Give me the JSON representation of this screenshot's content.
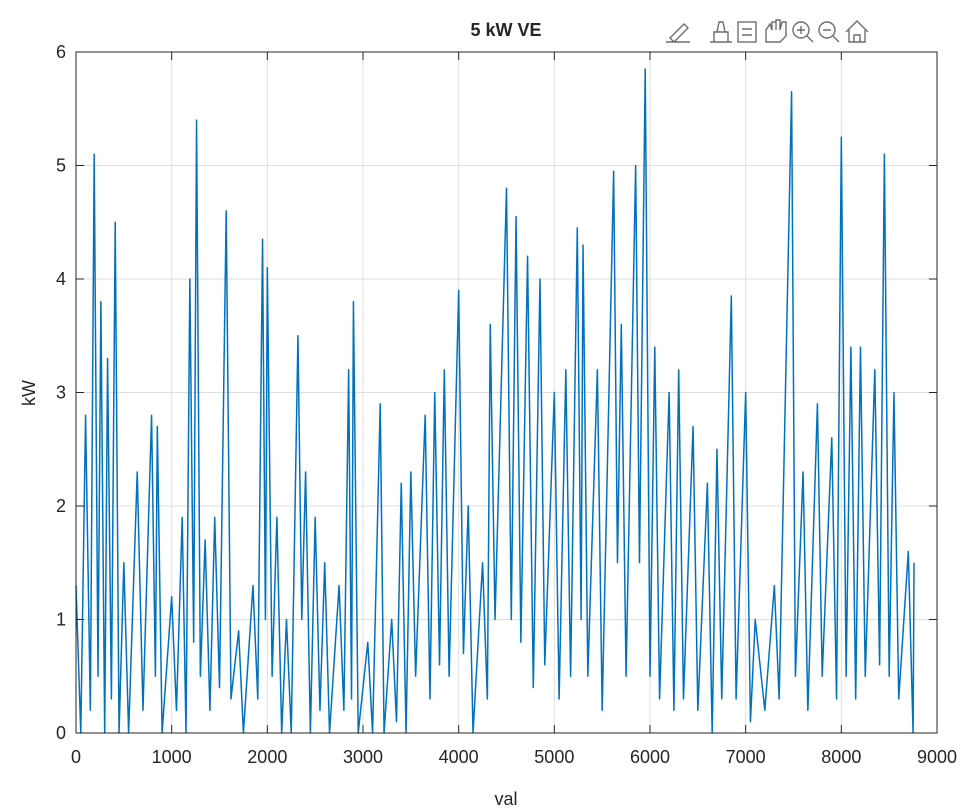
{
  "chart_data": {
    "type": "line",
    "title": "5 kW VE",
    "xlabel": "val",
    "ylabel": "kW",
    "color": "#0072bd",
    "grid": true,
    "xlim": [
      0,
      9000
    ],
    "xticks": [
      0,
      1000,
      2000,
      3000,
      4000,
      5000,
      6000,
      7000,
      8000,
      9000
    ],
    "ylim": [
      0,
      6
    ],
    "yticks": [
      0,
      1,
      2,
      3,
      4,
      5,
      6
    ],
    "x": [
      0,
      50,
      100,
      150,
      190,
      230,
      260,
      300,
      330,
      370,
      410,
      450,
      500,
      550,
      640,
      700,
      790,
      830,
      850,
      900,
      1000,
      1050,
      1110,
      1150,
      1190,
      1230,
      1260,
      1300,
      1350,
      1400,
      1450,
      1500,
      1570,
      1620,
      1700,
      1750,
      1850,
      1900,
      1950,
      1980,
      2000,
      2050,
      2100,
      2150,
      2200,
      2250,
      2320,
      2360,
      2400,
      2450,
      2500,
      2550,
      2600,
      2650,
      2750,
      2800,
      2850,
      2880,
      2900,
      2950,
      3050,
      3100,
      3180,
      3220,
      3300,
      3350,
      3400,
      3450,
      3500,
      3550,
      3650,
      3700,
      3750,
      3800,
      3850,
      3900,
      4000,
      4050,
      4100,
      4150,
      4250,
      4300,
      4330,
      4380,
      4500,
      4550,
      4600,
      4650,
      4720,
      4780,
      4850,
      4900,
      5000,
      5050,
      5120,
      5170,
      5240,
      5280,
      5300,
      5350,
      5450,
      5500,
      5620,
      5660,
      5700,
      5750,
      5850,
      5890,
      5950,
      6000,
      6050,
      6100,
      6200,
      6250,
      6300,
      6350,
      6450,
      6500,
      6600,
      6650,
      6700,
      6750,
      6850,
      6900,
      7000,
      7050,
      7100,
      7200,
      7300,
      7350,
      7480,
      7520,
      7600,
      7650,
      7750,
      7800,
      7900,
      7950,
      8000,
      8050,
      8100,
      8150,
      8200,
      8250,
      8350,
      8400,
      8450,
      8500,
      8550,
      8600,
      8700,
      8750,
      8760
    ],
    "values": [
      1.3,
      0,
      2.8,
      0.2,
      5.1,
      0.5,
      3.8,
      0,
      3.3,
      0.3,
      4.5,
      0,
      1.5,
      0,
      2.3,
      0.2,
      2.8,
      0.5,
      2.7,
      0,
      1.2,
      0.2,
      1.9,
      0,
      4.0,
      0.8,
      5.4,
      0.5,
      1.7,
      0.2,
      1.9,
      0.4,
      4.6,
      0.3,
      0.9,
      0,
      1.3,
      0.3,
      4.35,
      1.0,
      4.1,
      0.5,
      1.9,
      0,
      1.0,
      0,
      3.5,
      1.0,
      2.3,
      0,
      1.9,
      0.2,
      1.5,
      0,
      1.3,
      0.2,
      3.2,
      0.3,
      3.8,
      0,
      0.8,
      0,
      2.9,
      0,
      1.0,
      0.1,
      2.2,
      0,
      2.3,
      0.5,
      2.8,
      0.3,
      3.0,
      0.6,
      3.2,
      0.5,
      3.9,
      0.7,
      2.0,
      0,
      1.5,
      0.3,
      3.6,
      1.0,
      4.8,
      1.0,
      4.55,
      0.8,
      4.2,
      0.4,
      4.0,
      0.6,
      3.0,
      0.3,
      3.2,
      0.5,
      4.45,
      1.0,
      4.3,
      0.5,
      3.2,
      0.2,
      4.95,
      1.5,
      3.6,
      0.5,
      5.0,
      1.5,
      5.85,
      0.5,
      3.4,
      0.3,
      3.0,
      0.2,
      3.2,
      0.3,
      2.7,
      0.2,
      2.2,
      0,
      2.5,
      0.3,
      3.85,
      0.3,
      3.0,
      0.1,
      1.0,
      0.2,
      1.3,
      0.3,
      5.65,
      0.5,
      2.3,
      0.2,
      2.9,
      0.5,
      2.6,
      0.3,
      5.25,
      0.5,
      3.4,
      0.3,
      3.4,
      0.5,
      3.2,
      0.6,
      5.1,
      0.5,
      3.0,
      0.3,
      1.6,
      0,
      1.5
    ]
  }
}
